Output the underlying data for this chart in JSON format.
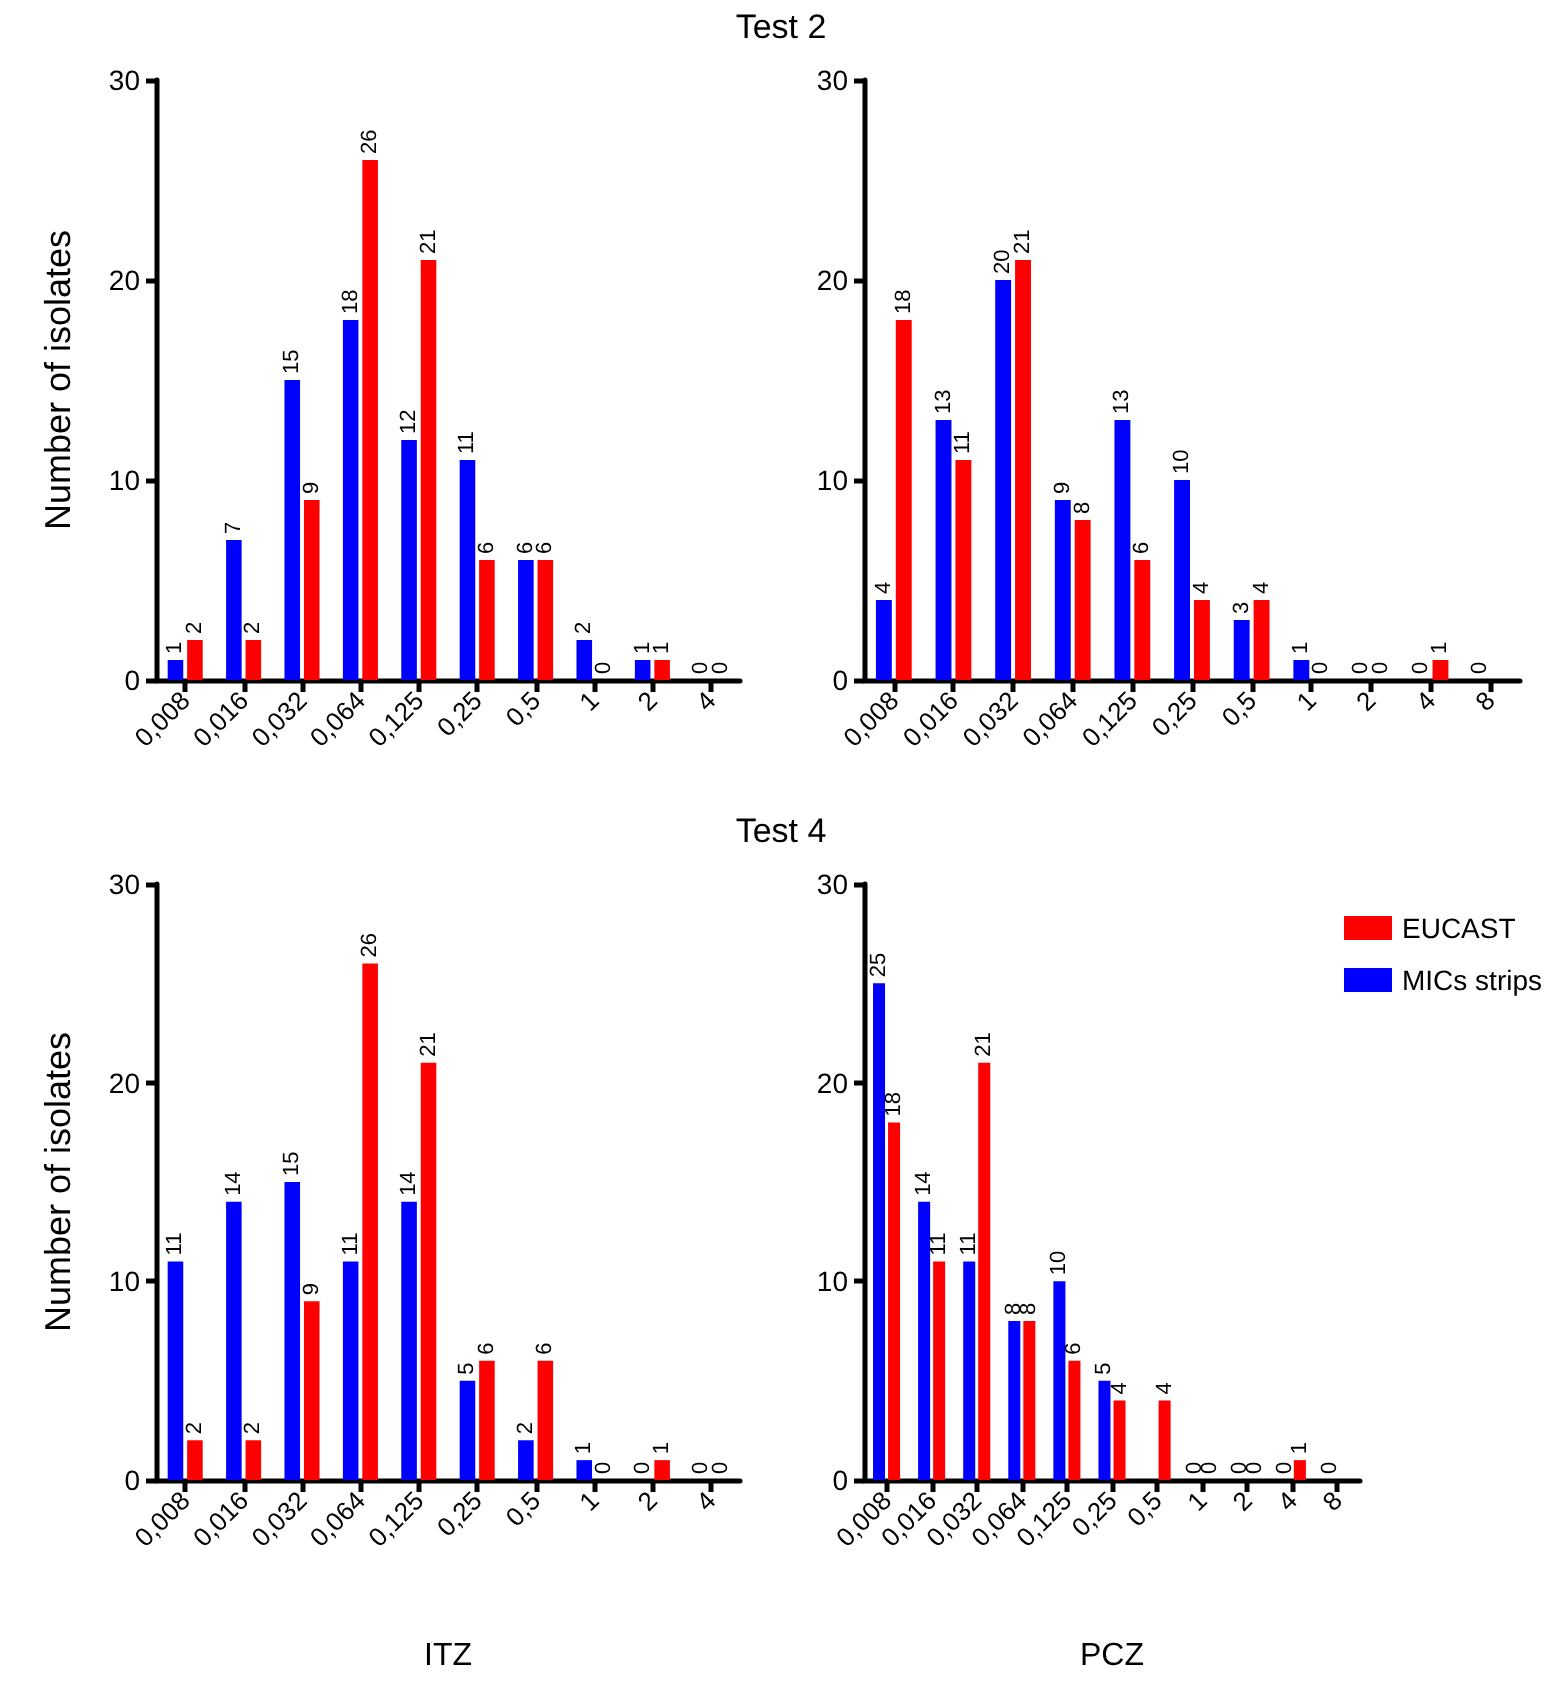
{
  "chart_data": [
    {
      "type": "bar",
      "title": "Test 2",
      "ylabel": "Number of isolates",
      "categories": [
        "0,008",
        "0,016",
        "0,032",
        "0,064",
        "0,125",
        "0,25",
        "0,5",
        "1",
        "2",
        "4"
      ],
      "series": [
        {
          "color": "#0000ff",
          "values": [
            1,
            7,
            15,
            18,
            12,
            11,
            6,
            2,
            1,
            0
          ]
        },
        {
          "color": "#ff0000",
          "values": [
            2,
            2,
            9,
            26,
            21,
            6,
            6,
            0,
            1,
            0
          ]
        }
      ],
      "ylim": [
        0,
        30
      ],
      "yticks": [
        0,
        10,
        20,
        30
      ],
      "data_labels": true
    },
    {
      "type": "bar",
      "categories": [
        "0,008",
        "0,016",
        "0,032",
        "0,064",
        "0,125",
        "0,25",
        "0,5",
        "1",
        "2",
        "4",
        "8"
      ],
      "series": [
        {
          "color": "#0000ff",
          "values": [
            4,
            13,
            20,
            9,
            13,
            10,
            3,
            1,
            0,
            0,
            0
          ]
        },
        {
          "color": "#ff0000",
          "values": [
            18,
            11,
            21,
            8,
            6,
            4,
            4,
            0,
            0,
            1,
            null
          ]
        }
      ],
      "ylim": [
        0,
        30
      ],
      "yticks": [
        0,
        10,
        20,
        30
      ],
      "data_labels": true
    },
    {
      "type": "bar",
      "title": "Test 4",
      "xlabel": "ITZ",
      "ylabel": "Number of isolates",
      "categories": [
        "0,008",
        "0,016",
        "0,032",
        "0,064",
        "0,125",
        "0,25",
        "0,5",
        "1",
        "2",
        "4"
      ],
      "series": [
        {
          "color": "#0000ff",
          "values": [
            11,
            14,
            15,
            11,
            14,
            5,
            2,
            1,
            0,
            0
          ]
        },
        {
          "color": "#ff0000",
          "values": [
            2,
            2,
            9,
            26,
            21,
            6,
            6,
            0,
            1,
            0
          ]
        }
      ],
      "ylim": [
        0,
        30
      ],
      "yticks": [
        0,
        10,
        20,
        30
      ],
      "data_labels": true
    },
    {
      "type": "bar",
      "xlabel": "PCZ",
      "categories": [
        "0,008",
        "0,016",
        "0,032",
        "0,064",
        "0,125",
        "0,25",
        "0,5",
        "1",
        "2",
        "4",
        "8"
      ],
      "series": [
        {
          "name": "MICs strips",
          "color": "#0000ff",
          "values": [
            25,
            14,
            11,
            8,
            10,
            5,
            null,
            0,
            0,
            0,
            0
          ]
        },
        {
          "name": "EUCAST",
          "color": "#ff0000",
          "values": [
            18,
            11,
            21,
            8,
            6,
            4,
            4,
            0,
            0,
            1,
            null
          ]
        }
      ],
      "ylim": [
        0,
        30
      ],
      "yticks": [
        0,
        10,
        20,
        30
      ],
      "data_labels": true,
      "legend": "top right"
    }
  ]
}
